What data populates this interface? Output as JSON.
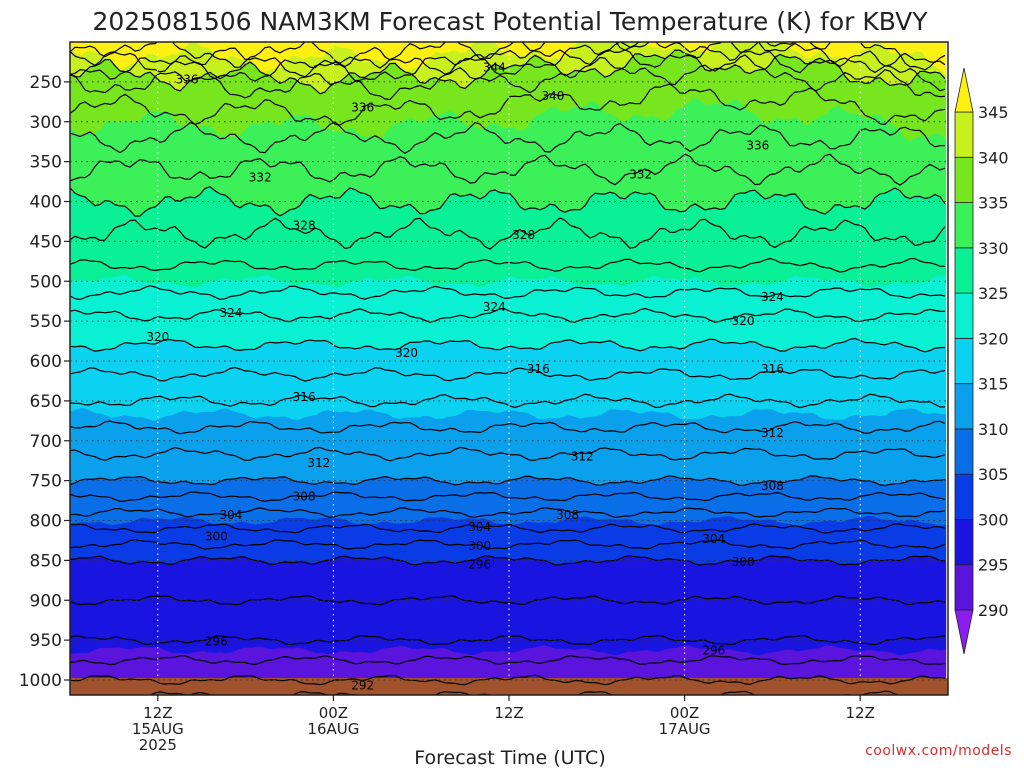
{
  "chart_data": {
    "type": "heatmap",
    "title": "2025081506 NAM3KM Forecast Potential Temperature (K) for KBVY",
    "xlabel": "Forecast Time (UTC)",
    "ylabel": "",
    "credit": "coolwx.com/models",
    "y_ticks": [
      "250",
      "300",
      "350",
      "400",
      "450",
      "500",
      "550",
      "600",
      "650",
      "700",
      "750",
      "800",
      "850",
      "900",
      "950",
      "1000"
    ],
    "y_levels": [
      250,
      300,
      350,
      400,
      450,
      500,
      550,
      600,
      650,
      700,
      750,
      800,
      850,
      900,
      950,
      1000
    ],
    "y_range": [
      200,
      1000
    ],
    "x_ticks": [
      {
        "line1": "12Z",
        "line2": "15AUG",
        "line3": "2025",
        "hour": 6
      },
      {
        "line1": "00Z",
        "line2": "16AUG",
        "line3": "",
        "hour": 18
      },
      {
        "line1": "12Z",
        "line2": "",
        "line3": "",
        "hour": 30
      },
      {
        "line1": "00Z",
        "line2": "17AUG",
        "line3": "",
        "hour": 42
      },
      {
        "line1": "12Z",
        "line2": "",
        "line3": "",
        "hour": 54
      }
    ],
    "x_range_hours": [
      0,
      60
    ],
    "colorbar": {
      "ticks": [
        "290",
        "295",
        "300",
        "305",
        "310",
        "315",
        "320",
        "325",
        "330",
        "335",
        "340",
        "345"
      ],
      "bins": [
        {
          "lo": 285,
          "hi": 290,
          "color": "#8a1ef0"
        },
        {
          "lo": 290,
          "hi": 295,
          "color": "#5a14dc"
        },
        {
          "lo": 295,
          "hi": 300,
          "color": "#1a14e0"
        },
        {
          "lo": 300,
          "hi": 305,
          "color": "#0a3ce6"
        },
        {
          "lo": 305,
          "hi": 310,
          "color": "#0a6ee6"
        },
        {
          "lo": 310,
          "hi": 315,
          "color": "#0aa0ec"
        },
        {
          "lo": 315,
          "hi": 320,
          "color": "#0ad2f0"
        },
        {
          "lo": 320,
          "hi": 325,
          "color": "#0af0d2"
        },
        {
          "lo": 325,
          "hi": 330,
          "color": "#0af096"
        },
        {
          "lo": 330,
          "hi": 335,
          "color": "#3cf05a"
        },
        {
          "lo": 335,
          "hi": 340,
          "color": "#78e61e"
        },
        {
          "lo": 340,
          "hi": 345,
          "color": "#c8f01e"
        },
        {
          "lo": 345,
          "hi": 350,
          "color": "#fff014"
        }
      ]
    },
    "profile": [
      {
        "p": 200,
        "theta": 348
      },
      {
        "p": 250,
        "theta": 338
      },
      {
        "p": 300,
        "theta": 335
      },
      {
        "p": 350,
        "theta": 332.5
      },
      {
        "p": 400,
        "theta": 330
      },
      {
        "p": 450,
        "theta": 327.5
      },
      {
        "p": 500,
        "theta": 325
      },
      {
        "p": 550,
        "theta": 321.5
      },
      {
        "p": 600,
        "theta": 319
      },
      {
        "p": 650,
        "theta": 316
      },
      {
        "p": 700,
        "theta": 313
      },
      {
        "p": 750,
        "theta": 310
      },
      {
        "p": 800,
        "theta": 305
      },
      {
        "p": 850,
        "theta": 300
      },
      {
        "p": 900,
        "theta": 298
      },
      {
        "p": 950,
        "theta": 296
      },
      {
        "p": 1000,
        "theta": 292
      }
    ],
    "contour_labels": [
      {
        "text": "344",
        "hour": 29,
        "p": 232
      },
      {
        "text": "336",
        "hour": 8,
        "p": 247
      },
      {
        "text": "340",
        "hour": 33,
        "p": 268
      },
      {
        "text": "336",
        "hour": 20,
        "p": 282
      },
      {
        "text": "336",
        "hour": 47,
        "p": 330
      },
      {
        "text": "332",
        "hour": 13,
        "p": 370
      },
      {
        "text": "332",
        "hour": 39,
        "p": 366
      },
      {
        "text": "328",
        "hour": 16,
        "p": 430
      },
      {
        "text": "328",
        "hour": 31,
        "p": 442
      },
      {
        "text": "324",
        "hour": 11,
        "p": 540
      },
      {
        "text": "324",
        "hour": 29,
        "p": 532
      },
      {
        "text": "324",
        "hour": 48,
        "p": 520
      },
      {
        "text": "320",
        "hour": 6,
        "p": 570
      },
      {
        "text": "320",
        "hour": 46,
        "p": 550
      },
      {
        "text": "320",
        "hour": 23,
        "p": 590
      },
      {
        "text": "316",
        "hour": 32,
        "p": 610
      },
      {
        "text": "316",
        "hour": 48,
        "p": 610
      },
      {
        "text": "316",
        "hour": 16,
        "p": 645
      },
      {
        "text": "312",
        "hour": 48,
        "p": 690
      },
      {
        "text": "312",
        "hour": 35,
        "p": 720
      },
      {
        "text": "312",
        "hour": 17,
        "p": 728
      },
      {
        "text": "308",
        "hour": 48,
        "p": 757
      },
      {
        "text": "308",
        "hour": 16,
        "p": 770
      },
      {
        "text": "308",
        "hour": 34,
        "p": 793
      },
      {
        "text": "304",
        "hour": 11,
        "p": 793
      },
      {
        "text": "304",
        "hour": 28,
        "p": 808
      },
      {
        "text": "304",
        "hour": 44,
        "p": 823
      },
      {
        "text": "300",
        "hour": 10,
        "p": 820
      },
      {
        "text": "300",
        "hour": 28,
        "p": 832
      },
      {
        "text": "300",
        "hour": 46,
        "p": 852
      },
      {
        "text": "296",
        "hour": 28,
        "p": 855
      },
      {
        "text": "296",
        "hour": 10,
        "p": 952
      },
      {
        "text": "296",
        "hour": 44,
        "p": 963
      },
      {
        "text": "292",
        "hour": 20,
        "p": 1007
      }
    ]
  }
}
